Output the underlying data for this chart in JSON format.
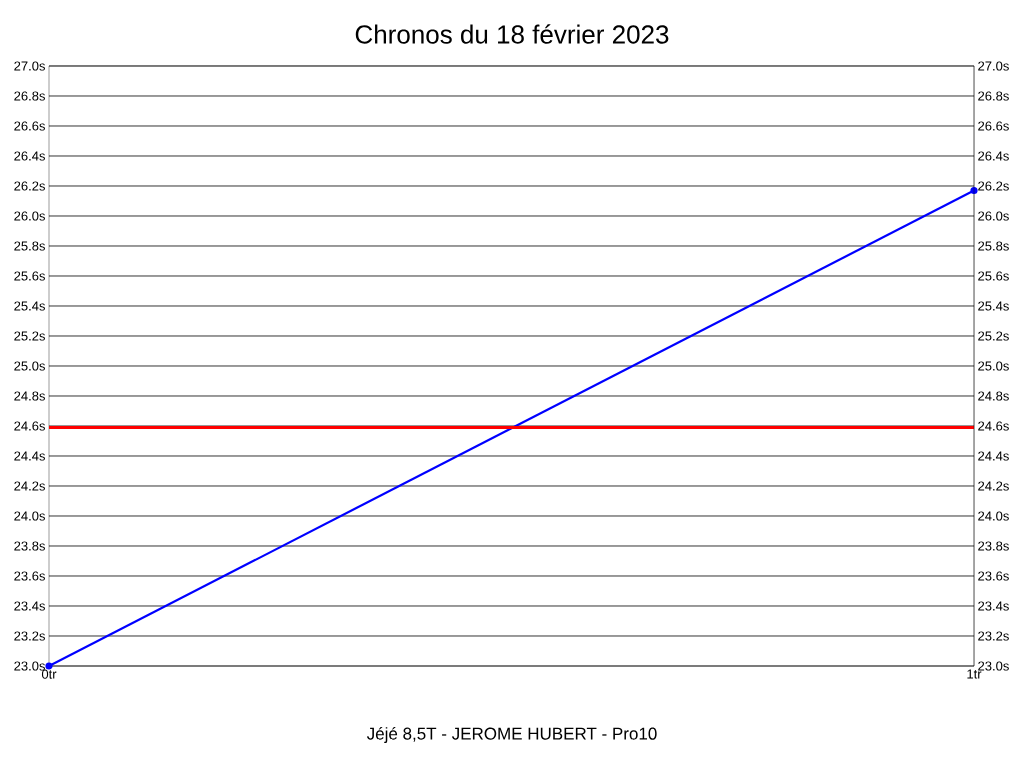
{
  "chart_data": {
    "type": "line",
    "title": "Chronos du 18 février 2023",
    "xlabel": "Jéjé 8,5T - JEROME HUBERT - Pro10",
    "x": [
      0,
      1
    ],
    "series": [
      {
        "color": "#0000ff",
        "values": [
          23.0,
          26.17
        ]
      }
    ],
    "xlim": [
      0,
      1
    ],
    "xticks": [
      {
        "value": 0,
        "label": "0tr"
      },
      {
        "value": 1,
        "label": "1tr"
      }
    ],
    "ylim": [
      23.0,
      27.0
    ],
    "yticks": [
      {
        "value": 23.0,
        "label": "23.0s"
      },
      {
        "value": 23.2,
        "label": "23.2s"
      },
      {
        "value": 23.4,
        "label": "23.4s"
      },
      {
        "value": 23.6,
        "label": "23.6s"
      },
      {
        "value": 23.8,
        "label": "23.8s"
      },
      {
        "value": 24.0,
        "label": "24.0s"
      },
      {
        "value": 24.2,
        "label": "24.2s"
      },
      {
        "value": 24.4,
        "label": "24.4s"
      },
      {
        "value": 24.6,
        "label": "24.6s"
      },
      {
        "value": 24.8,
        "label": "24.8s"
      },
      {
        "value": 25.0,
        "label": "25.0s"
      },
      {
        "value": 25.2,
        "label": "25.2s"
      },
      {
        "value": 25.4,
        "label": "25.4s"
      },
      {
        "value": 25.6,
        "label": "25.6s"
      },
      {
        "value": 25.8,
        "label": "25.8s"
      },
      {
        "value": 26.0,
        "label": "26.0s"
      },
      {
        "value": 26.2,
        "label": "26.2s"
      },
      {
        "value": 26.4,
        "label": "26.4s"
      },
      {
        "value": 26.6,
        "label": "26.6s"
      },
      {
        "value": 26.8,
        "label": "26.8s"
      },
      {
        "value": 27.0,
        "label": "27.0s"
      }
    ],
    "y2lim": [
      23.0,
      27.0
    ],
    "y2ticks": [
      {
        "value": 23.0,
        "label": "23.0s"
      },
      {
        "value": 23.2,
        "label": "23.2s"
      },
      {
        "value": 23.4,
        "label": "23.4s"
      },
      {
        "value": 23.6,
        "label": "23.6s"
      },
      {
        "value": 23.8,
        "label": "23.8s"
      },
      {
        "value": 24.0,
        "label": "24.0s"
      },
      {
        "value": 24.2,
        "label": "24.2s"
      },
      {
        "value": 24.4,
        "label": "24.4s"
      },
      {
        "value": 24.6,
        "label": "24.6s"
      },
      {
        "value": 24.8,
        "label": "24.8s"
      },
      {
        "value": 25.0,
        "label": "25.0s"
      },
      {
        "value": 25.2,
        "label": "25.2s"
      },
      {
        "value": 25.4,
        "label": "25.4s"
      },
      {
        "value": 25.6,
        "label": "25.6s"
      },
      {
        "value": 25.8,
        "label": "25.8s"
      },
      {
        "value": 26.0,
        "label": "26.0s"
      },
      {
        "value": 26.2,
        "label": "26.2s"
      },
      {
        "value": 26.4,
        "label": "26.4s"
      },
      {
        "value": 26.6,
        "label": "26.6s"
      },
      {
        "value": 26.8,
        "label": "26.8s"
      },
      {
        "value": 27.0,
        "label": "27.0s"
      }
    ],
    "ref_lines": [
      {
        "axis": "y",
        "value": 24.59,
        "color": "#ff0000"
      }
    ],
    "grid": "y",
    "marker": "circle",
    "line_style": "solid"
  }
}
